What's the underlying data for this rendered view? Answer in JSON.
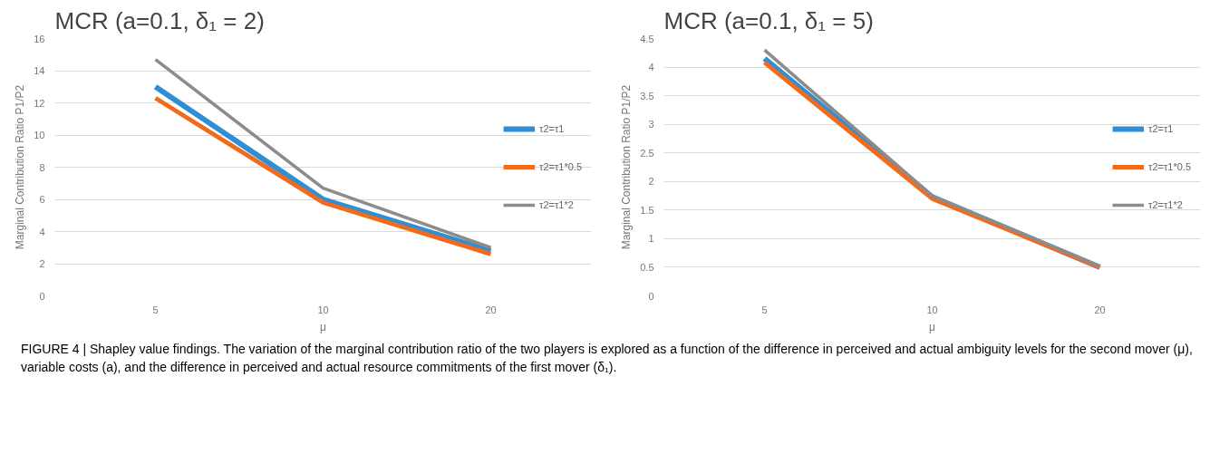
{
  "chart_data": [
    {
      "type": "line",
      "title": "MCR (a=0.1, δ₁ = 2)",
      "xlabel": "μ",
      "ylabel": "Marginal Contribution Ratio P1/P2",
      "categories": [
        "5",
        "10",
        "20"
      ],
      "ylim": [
        0,
        16
      ],
      "yticks": [
        0,
        2,
        4,
        6,
        8,
        10,
        12,
        14,
        16
      ],
      "grid": "y",
      "legend": "right",
      "series": [
        {
          "name": "τ2=τ1",
          "color": "#2e8fd4",
          "values": [
            13.0,
            6.0,
            2.8
          ]
        },
        {
          "name": "τ2=τ1*0.5",
          "color": "#f26b1d",
          "values": [
            12.3,
            5.8,
            2.6
          ]
        },
        {
          "name": "τ2=τ1*2",
          "color": "#8c8c8c",
          "values": [
            14.7,
            6.7,
            3.0
          ]
        }
      ],
      "annotations": [
        "FIGURE 4 | Shapley value findings. The variation of the marginal contribution ratio of the two players is explored as a function of the difference in perceived and actual ambiguity levels for the second mover (μ), variable costs (a), and the difference in perceived and actual resource commitments of the first mover (δ₁)."
      ]
    },
    {
      "type": "line",
      "title": "MCR (a=0.1, δ₁ = 5)",
      "xlabel": "μ",
      "ylabel": "Marginal Contribution Ratio P1/P2",
      "categories": [
        "5",
        "10",
        "20"
      ],
      "ylim": [
        0,
        4.5
      ],
      "yticks": [
        0,
        0.5,
        1,
        1.5,
        2,
        2.5,
        3,
        3.5,
        4,
        4.5
      ],
      "grid": "y",
      "legend": "right",
      "series": [
        {
          "name": "τ2=τ1",
          "color": "#2e8fd4",
          "values": [
            4.15,
            1.73,
            0.5
          ]
        },
        {
          "name": "τ2=τ1*0.5",
          "color": "#f26b1d",
          "values": [
            4.08,
            1.7,
            0.5
          ]
        },
        {
          "name": "τ2=τ1*2",
          "color": "#8c8c8c",
          "values": [
            4.3,
            1.75,
            0.52
          ]
        }
      ]
    }
  ]
}
